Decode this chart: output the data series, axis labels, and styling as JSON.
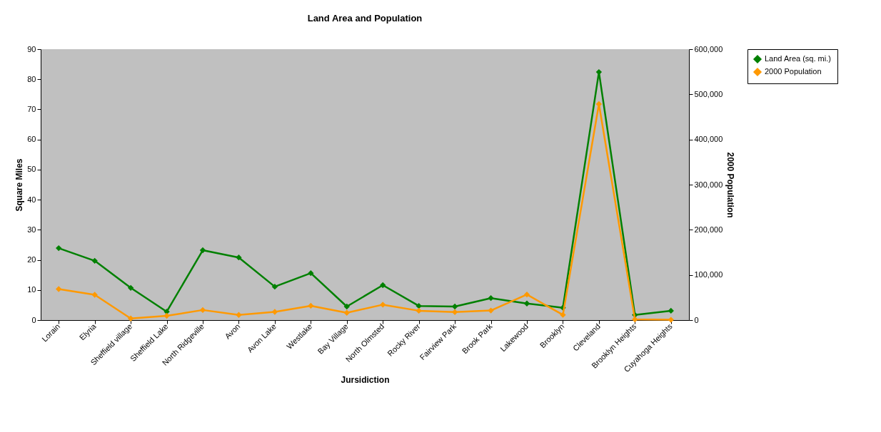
{
  "chart_data": {
    "type": "line",
    "title": "Land Area and Population",
    "xlabel": "Jursidiction",
    "ylabel": "Square Miles",
    "y2label": "2000 Population",
    "categories": [
      "Lorain",
      "Elyria",
      "Sheffield village",
      "Sheffield Lake",
      "North Ridgeville",
      "Avon",
      "Avon Lake",
      "Westlake",
      "Bay Village",
      "North Olmsted",
      "Rocky River",
      "Fairview Park",
      "Brook Park",
      "Lakewood",
      "Brooklyn",
      "Cleveland",
      "Brooklyn Heights",
      "Cuyahoga Heights"
    ],
    "series": [
      {
        "name": "Land Area (sq. mi.)",
        "color": "#008000",
        "values": [
          23.9,
          19.7,
          10.7,
          2.8,
          23.2,
          20.8,
          11.1,
          15.6,
          4.5,
          11.6,
          4.7,
          4.5,
          7.3,
          5.5,
          4.1,
          82.4,
          1.7,
          3.1
        ]
      },
      {
        "name": "2000 Population",
        "color": "#ff9900",
        "axis": "y2",
        "values": [
          68700,
          56000,
          3600,
          9400,
          22300,
          11400,
          18100,
          31700,
          16100,
          34100,
          20700,
          17600,
          21200,
          56600,
          11600,
          478400,
          1600,
          600
        ]
      }
    ],
    "ylim": [
      0,
      90
    ],
    "yticks": [
      0,
      10,
      20,
      30,
      40,
      50,
      60,
      70,
      80,
      90
    ],
    "y2lim": [
      0,
      600000
    ],
    "y2ticks": [
      {
        "value": 0,
        "label": "0"
      },
      {
        "value": 100000,
        "label": "100,000"
      },
      {
        "value": 200000,
        "label": "200,000"
      },
      {
        "value": 300000,
        "label": "300,000"
      },
      {
        "value": 400000,
        "label": "400,000"
      },
      {
        "value": 500000,
        "label": "500,000"
      },
      {
        "value": 600000,
        "label": "600,000"
      }
    ],
    "grid": false,
    "legend": "right",
    "marker": "diamond",
    "line_style": "solid"
  }
}
